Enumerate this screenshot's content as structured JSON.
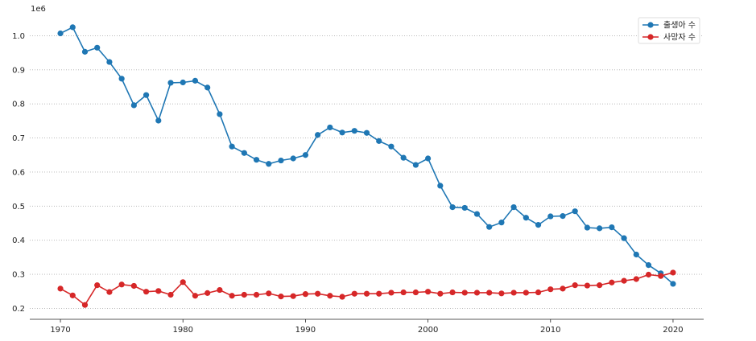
{
  "chart_data": {
    "type": "line",
    "scale_label": "1e6",
    "x": [
      1970,
      1971,
      1972,
      1973,
      1974,
      1975,
      1976,
      1977,
      1978,
      1979,
      1980,
      1981,
      1982,
      1983,
      1984,
      1985,
      1986,
      1987,
      1988,
      1989,
      1990,
      1991,
      1992,
      1993,
      1994,
      1995,
      1996,
      1997,
      1998,
      1999,
      2000,
      2001,
      2002,
      2003,
      2004,
      2005,
      2006,
      2007,
      2008,
      2009,
      2010,
      2011,
      2012,
      2013,
      2014,
      2015,
      2016,
      2017,
      2018,
      2019,
      2020
    ],
    "series": [
      {
        "name": "출생아 수",
        "color": "#1f77b4",
        "values": [
          1007000,
          1025000,
          953000,
          965000,
          923000,
          874000,
          796000,
          826000,
          751000,
          862000,
          863000,
          868000,
          848000,
          770000,
          675000,
          656000,
          636000,
          624000,
          634000,
          640000,
          650000,
          709000,
          731000,
          716000,
          721000,
          715000,
          691000,
          675000,
          642000,
          621000,
          640000,
          560000,
          497000,
          495000,
          477000,
          439000,
          452000,
          497000,
          466000,
          445000,
          470000,
          471000,
          485000,
          437000,
          435000,
          438000,
          406000,
          358000,
          327000,
          303000,
          272000
        ]
      },
      {
        "name": "사망자 수",
        "color": "#d62728",
        "values": [
          258000,
          238000,
          210000,
          268000,
          248000,
          270000,
          266000,
          249000,
          251000,
          240000,
          277000,
          237000,
          245000,
          254000,
          237000,
          240000,
          240000,
          244000,
          235000,
          236000,
          242000,
          243000,
          237000,
          234000,
          243000,
          243000,
          243000,
          246000,
          247000,
          247000,
          249000,
          243000,
          247000,
          246000,
          246000,
          246000,
          244000,
          246000,
          246000,
          247000,
          256000,
          258000,
          268000,
          267000,
          268000,
          276000,
          281000,
          286000,
          299000,
          295000,
          305000
        ]
      }
    ],
    "xticks": [
      1970,
      1980,
      1990,
      2000,
      2010,
      2020
    ],
    "yticks": [
      200000,
      300000,
      400000,
      500000,
      600000,
      700000,
      800000,
      900000,
      1000000
    ],
    "ytick_labels": [
      "0.2",
      "0.3",
      "0.4",
      "0.5",
      "0.6",
      "0.7",
      "0.8",
      "0.9",
      "1.0"
    ],
    "xlim": [
      1967.5,
      2022.5
    ],
    "ylim": [
      168000,
      1053000
    ],
    "grid": "y-dotted",
    "legend_position": "top-right"
  }
}
